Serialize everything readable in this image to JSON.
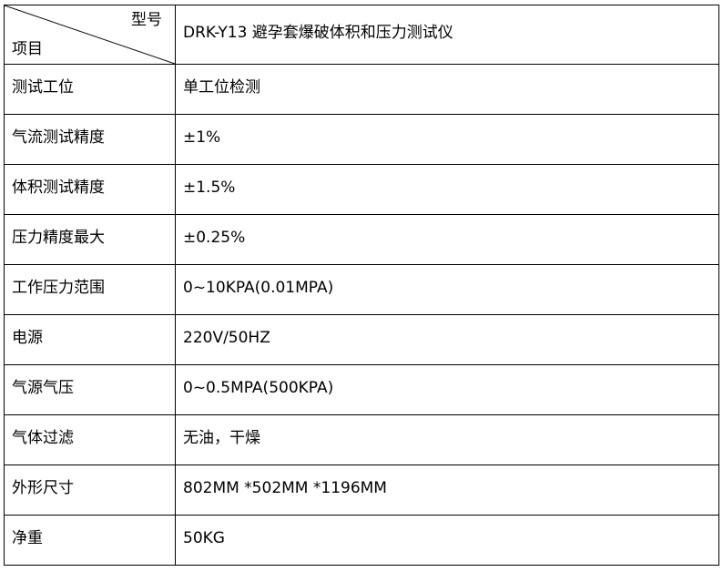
{
  "header": {
    "model_label": "型号",
    "item_label": "项目",
    "model_value": "DRK-Y13 避孕套爆破体积和压力测试仪"
  },
  "rows": [
    {
      "label": "测试工位",
      "value": "单工位检测"
    },
    {
      "label": "气流测试精度",
      "value": "±1%"
    },
    {
      "label": "体积测试精度",
      "value": "±1.5%"
    },
    {
      "label": "压力精度最大",
      "value": "±0.25%"
    },
    {
      "label": "工作压力范围",
      "value": "0~10KPA(0.01MPA)"
    },
    {
      "label": "电源",
      "value": "220V/50HZ"
    },
    {
      "label": "气源气压",
      "value": "0~0.5MPA(500KPA)"
    },
    {
      "label": "气体过滤",
      "value": "无油，干燥"
    },
    {
      "label": "外形尺寸",
      "value": "802MM *502MM *1196MM"
    },
    {
      "label": "净重",
      "value": "50KG"
    }
  ]
}
